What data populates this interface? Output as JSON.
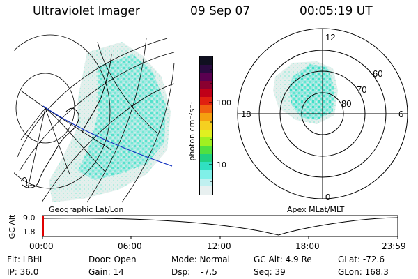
{
  "header": {
    "instrument": "Ultraviolet Imager",
    "date": "09 Sep 07",
    "time": "00:05:19 UT"
  },
  "geo_map": {
    "caption": "Geographic Lat/Lon"
  },
  "polar_plot": {
    "caption": "Apex MLat/MLT",
    "mlt_labels": [
      "12",
      "18",
      "6",
      "0"
    ],
    "lat_labels": [
      "60",
      "70",
      "80"
    ]
  },
  "colorbar": {
    "unit_label": "photon cm⁻²s⁻¹",
    "tick_labels": [
      "100",
      "10"
    ],
    "colors": [
      "#101020",
      "#2a0a40",
      "#5a0050",
      "#8a0030",
      "#c00018",
      "#e02010",
      "#f06010",
      "#f5a010",
      "#f5d020",
      "#e0f020",
      "#a0f020",
      "#50e040",
      "#20d080",
      "#30e0c0",
      "#80f0e8",
      "#c0f0f0",
      "#e8f0f0"
    ]
  },
  "altitude_timeline": {
    "ylabel": "GC Alt",
    "y_ticks": [
      "9.0",
      "1.8"
    ],
    "x_ticks": [
      "00:00",
      "06:00",
      "12:00",
      "18:00",
      "23:59"
    ]
  },
  "info": {
    "row1": [
      "Flt: LBHL",
      "Door: Open",
      "Mode: Normal",
      "GC Alt: 4.9 Re",
      "GLat: -72.6"
    ],
    "row2": [
      "IP: 36.0",
      "Gain: 14",
      "Dsp:    -7.5",
      "Seq: 39",
      "GLon: 168.3"
    ]
  },
  "colors": {
    "aurora": "#40e0d0",
    "track": "#1030c0"
  }
}
